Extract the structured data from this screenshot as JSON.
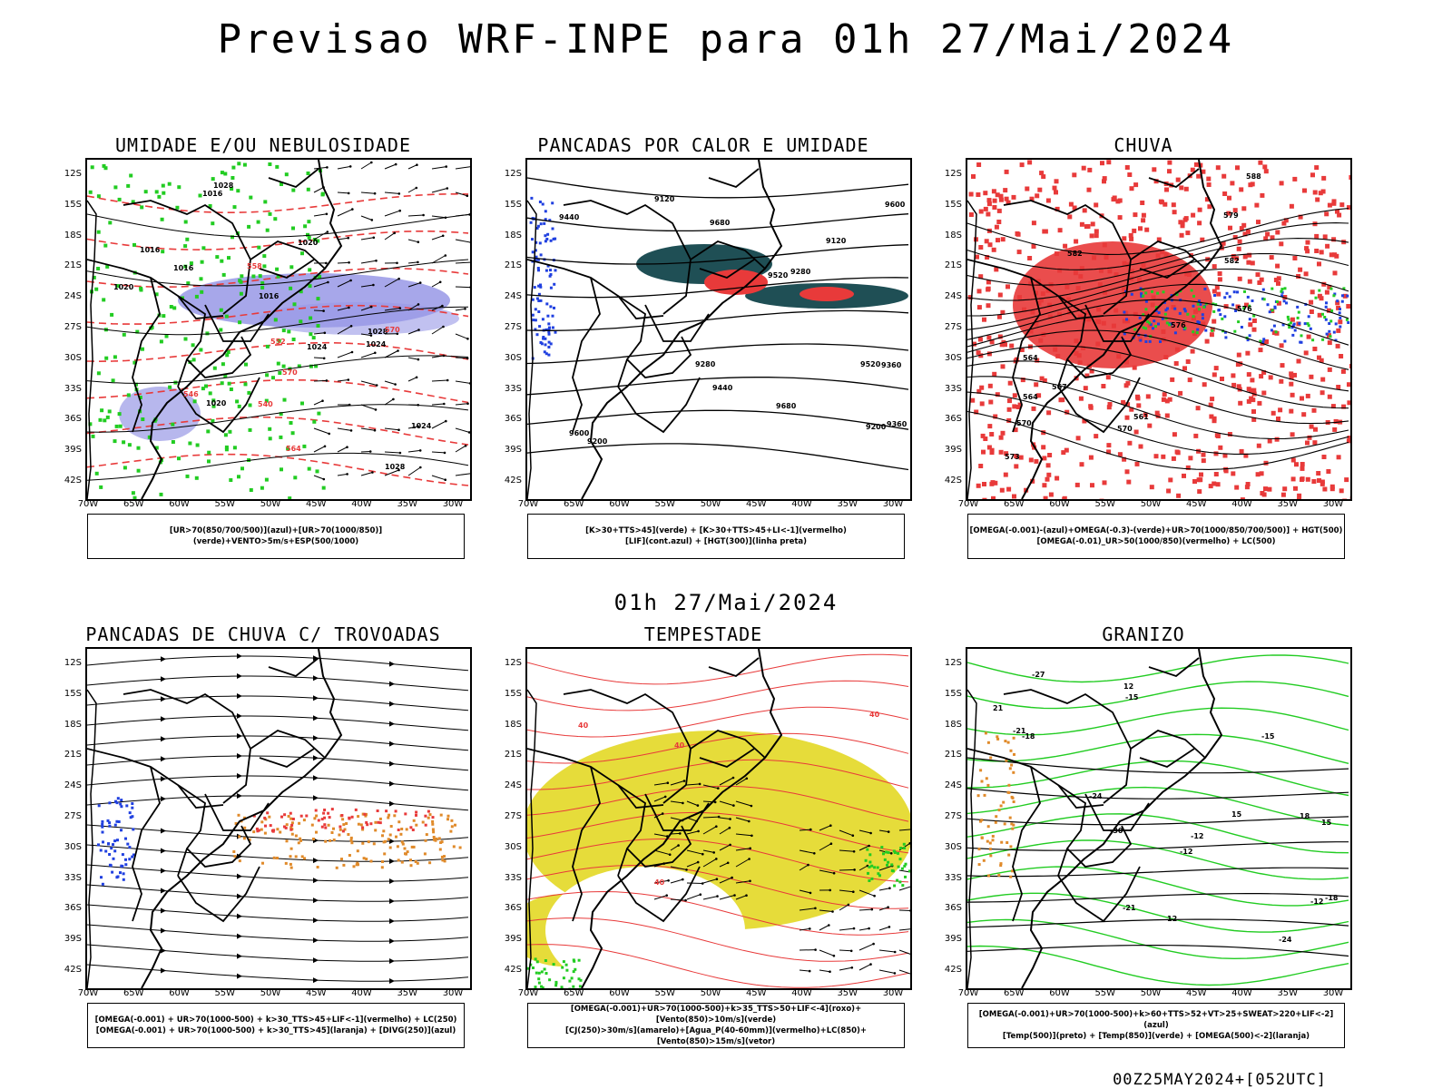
{
  "header": {
    "title": "Previsao WRF-INPE  para 01h 27/Mai/2024",
    "subtitle": "01h 27/Mai/2024"
  },
  "axes": {
    "lat_labels": [
      "12S",
      "15S",
      "18S",
      "21S",
      "24S",
      "27S",
      "30S",
      "33S",
      "36S",
      "39S",
      "42S"
    ],
    "lon_labels": [
      "70W",
      "65W",
      "60W",
      "55W",
      "50W",
      "45W",
      "40W",
      "35W",
      "30W"
    ]
  },
  "panels": [
    {
      "title": "UMIDADE E/OU NEBULOSIDADE",
      "legend": [
        "[UR>70(850/700/500)](azul)+[UR>70(1000/850)](verde)+VENTO>5m/s+ESP(500/1000)"
      ],
      "contour_labels": [
        "1016",
        "1016",
        "1016",
        "1016",
        "1020",
        "1020",
        "1020",
        "1024",
        "1024",
        "1024",
        "1028",
        "1028",
        "1028",
        "570",
        "570",
        "564",
        "558",
        "552",
        "546",
        "540"
      ]
    },
    {
      "title": "PANCADAS POR CALOR E UMIDADE",
      "legend": [
        "[K>30+TTS>45](verde) + [K>30+TTS>45+LI<-1](vermelho)",
        "[LIF](cont.azul) + [HGT(300)](linha preta)"
      ],
      "contour_labels": [
        "9680",
        "9680",
        "9600",
        "9600",
        "9520",
        "9520",
        "9440",
        "9440",
        "9360",
        "9360",
        "9280",
        "9280",
        "9200",
        "9200",
        "9120",
        "9120"
      ]
    },
    {
      "title": "CHUVA",
      "legend": [
        "[OMEGA(-0.001)-(azul)+OMEGA(-0.3)-(verde)+UR>70(1000/850/700/500)] + HGT(500)",
        "[OMEGA(-0.01)_UR>50(1000/850)(vermelho) + LC(500)"
      ],
      "contour_labels": [
        "588",
        "582",
        "582",
        "579",
        "576",
        "576",
        "573",
        "570",
        "570",
        "567",
        "564",
        "564",
        "561"
      ]
    },
    {
      "title": "PANCADAS DE CHUVA C/ TROVOADAS",
      "legend": [
        "[OMEGA(-0.001) + UR>70(1000-500) + k>30_TTS>45+LIF<-1](vermelho) + LC(250)",
        "[OMEGA(-0.001) + UR>70(1000-500) + k>30_TTS>45](laranja) + [DIVG(250)](azul)"
      ],
      "contour_labels": []
    },
    {
      "title": "TEMPESTADE",
      "legend": [
        "[OMEGA(-0.001)+UR>70(1000-500)+k>35_TTS>50+LIF<-4](roxo)+[Vento(850)>10m/s](verde)",
        "[CJ(250)>30m/s](amarelo)+[Agua_P(40-60mm)](vermelho)+LC(850)+[Vento(850)>15m/s](vetor)"
      ],
      "contour_labels": [
        "40",
        "40",
        "40",
        "40"
      ]
    },
    {
      "title": "GRANIZO",
      "legend": [
        "[OMEGA(-0.001)+UR>70(1000-500)+k>60+TTS>52+VT>25+SWEAT>220+LIF<-2](azul)",
        "[Temp(500)](preto) + [Temp(850)](verde) + [OMEGA(500)<-2](laranja)"
      ],
      "contour_labels": [
        "-12",
        "-12",
        "-12",
        "-15",
        "-15",
        "-18",
        "-18",
        "-21",
        "-21",
        "-24",
        "-24",
        "-27",
        "-30",
        "12",
        "12",
        "15",
        "15",
        "18",
        "21"
      ]
    }
  ],
  "footer": "00Z25MAY2024+[052UTC]",
  "colors": {
    "black": "#000000",
    "green": "#22cc22",
    "red": "#e83a3a",
    "lavender": "#9898e6",
    "blue": "#2040e0",
    "teal": "#1f4f55",
    "orange": "#e08a2a",
    "yellow": "#e6dc3a"
  }
}
